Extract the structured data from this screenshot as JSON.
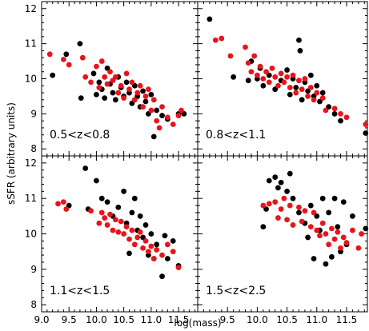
{
  "chart_data": {
    "type": "scatter",
    "xlabel": "log(mass)",
    "ylabel": "sSFR (arbitrary units)",
    "xlim": [
      9.0,
      11.85
    ],
    "ylim": [
      7.8,
      12.2
    ],
    "x_ticks": [
      "9.0",
      "9.5",
      "10.0",
      "10.5",
      "11.0",
      "11.5"
    ],
    "y_ticks": [
      "8",
      "9",
      "10",
      "11",
      "12"
    ],
    "grid": false,
    "series_colors": {
      "black": "#000000",
      "red": "#e8141b"
    },
    "panels": [
      {
        "label": "0.5<z<0.8",
        "black": [
          [
            9.2,
            10.1
          ],
          [
            9.45,
            10.7
          ],
          [
            9.7,
            11.0
          ],
          [
            9.72,
            9.45
          ],
          [
            9.95,
            10.15
          ],
          [
            10.0,
            9.55
          ],
          [
            10.05,
            9.9
          ],
          [
            10.1,
            9.7
          ],
          [
            10.15,
            9.45
          ],
          [
            10.2,
            10.3
          ],
          [
            10.25,
            9.85
          ],
          [
            10.3,
            9.6
          ],
          [
            10.35,
            9.4
          ],
          [
            10.4,
            10.05
          ],
          [
            10.45,
            9.75
          ],
          [
            10.5,
            9.5
          ],
          [
            10.55,
            9.9
          ],
          [
            10.6,
            9.6
          ],
          [
            10.65,
            9.3
          ],
          [
            10.7,
            9.8
          ],
          [
            10.75,
            9.5
          ],
          [
            10.8,
            9.2
          ],
          [
            10.85,
            9.65
          ],
          [
            10.9,
            9.35
          ],
          [
            10.95,
            9.0
          ],
          [
            11.0,
            9.55
          ],
          [
            11.05,
            8.35
          ],
          [
            11.1,
            9.1
          ],
          [
            11.2,
            8.95
          ],
          [
            11.3,
            8.85
          ],
          [
            11.5,
            9.0
          ],
          [
            11.6,
            9.0
          ]
        ],
        "red": [
          [
            9.15,
            10.7
          ],
          [
            9.4,
            10.55
          ],
          [
            9.5,
            10.4
          ],
          [
            9.75,
            10.6
          ],
          [
            9.8,
            10.05
          ],
          [
            9.9,
            9.9
          ],
          [
            10.0,
            10.35
          ],
          [
            10.05,
            9.75
          ],
          [
            10.1,
            10.5
          ],
          [
            10.15,
            10.05
          ],
          [
            10.2,
            9.85
          ],
          [
            10.25,
            10.2
          ],
          [
            10.3,
            9.95
          ],
          [
            10.35,
            10.05
          ],
          [
            10.4,
            9.6
          ],
          [
            10.45,
            9.8
          ],
          [
            10.5,
            9.45
          ],
          [
            10.55,
            10.15
          ],
          [
            10.6,
            9.7
          ],
          [
            10.65,
            9.9
          ],
          [
            10.7,
            9.4
          ],
          [
            10.75,
            9.6
          ],
          [
            10.8,
            9.8
          ],
          [
            10.85,
            9.2
          ],
          [
            10.9,
            9.5
          ],
          [
            10.95,
            9.7
          ],
          [
            11.0,
            9.1
          ],
          [
            11.05,
            9.4
          ],
          [
            11.1,
            8.8
          ],
          [
            11.15,
            8.6
          ],
          [
            11.2,
            9.2
          ],
          [
            11.3,
            8.9
          ],
          [
            11.4,
            8.7
          ],
          [
            11.5,
            8.95
          ],
          [
            11.55,
            9.1
          ]
        ]
      },
      {
        "label": "0.8<z<1.1",
        "black": [
          [
            9.2,
            11.7
          ],
          [
            9.6,
            10.05
          ],
          [
            9.85,
            9.95
          ],
          [
            9.9,
            10.5
          ],
          [
            10.0,
            10.0
          ],
          [
            10.05,
            10.3
          ],
          [
            10.1,
            9.8
          ],
          [
            10.2,
            10.1
          ],
          [
            10.3,
            9.7
          ],
          [
            10.4,
            9.95
          ],
          [
            10.5,
            10.25
          ],
          [
            10.55,
            9.55
          ],
          [
            10.6,
            10.0
          ],
          [
            10.65,
            9.75
          ],
          [
            10.7,
            11.1
          ],
          [
            10.72,
            10.8
          ],
          [
            10.75,
            9.4
          ],
          [
            10.8,
            9.9
          ],
          [
            10.85,
            9.65
          ],
          [
            10.9,
            10.1
          ],
          [
            10.95,
            9.5
          ],
          [
            11.0,
            9.8
          ],
          [
            11.05,
            9.35
          ],
          [
            11.1,
            9.6
          ],
          [
            11.2,
            9.2
          ],
          [
            11.3,
            9.0
          ],
          [
            11.4,
            8.8
          ],
          [
            11.82,
            8.45
          ]
        ],
        "red": [
          [
            9.3,
            11.1
          ],
          [
            9.4,
            11.15
          ],
          [
            9.55,
            10.65
          ],
          [
            9.8,
            10.9
          ],
          [
            9.85,
            10.45
          ],
          [
            9.9,
            10.2
          ],
          [
            9.95,
            10.65
          ],
          [
            10.0,
            10.1
          ],
          [
            10.05,
            10.35
          ],
          [
            10.1,
            10.0
          ],
          [
            10.15,
            10.2
          ],
          [
            10.2,
            9.9
          ],
          [
            10.25,
            10.3
          ],
          [
            10.3,
            10.05
          ],
          [
            10.35,
            9.8
          ],
          [
            10.4,
            10.15
          ],
          [
            10.45,
            9.9
          ],
          [
            10.5,
            10.05
          ],
          [
            10.55,
            9.75
          ],
          [
            10.6,
            10.1
          ],
          [
            10.65,
            9.6
          ],
          [
            10.7,
            9.95
          ],
          [
            10.75,
            9.7
          ],
          [
            10.8,
            10.0
          ],
          [
            10.85,
            9.5
          ],
          [
            10.9,
            9.75
          ],
          [
            10.95,
            9.4
          ],
          [
            11.0,
            9.6
          ],
          [
            11.1,
            9.45
          ],
          [
            11.15,
            9.1
          ],
          [
            11.3,
            9.15
          ],
          [
            11.4,
            9.0
          ],
          [
            11.5,
            8.9
          ],
          [
            11.82,
            8.7
          ]
        ]
      },
      {
        "label": "1.1<z<1.5",
        "black": [
          [
            9.5,
            10.8
          ],
          [
            9.8,
            11.85
          ],
          [
            9.85,
            10.7
          ],
          [
            10.0,
            11.5
          ],
          [
            10.1,
            11.0
          ],
          [
            10.2,
            10.9
          ],
          [
            10.3,
            10.5
          ],
          [
            10.4,
            10.75
          ],
          [
            10.5,
            11.2
          ],
          [
            10.55,
            10.3
          ],
          [
            10.6,
            9.45
          ],
          [
            10.65,
            10.6
          ],
          [
            10.7,
            11.0
          ],
          [
            10.75,
            10.1
          ],
          [
            10.8,
            10.5
          ],
          [
            10.85,
            9.9
          ],
          [
            10.9,
            10.25
          ],
          [
            10.95,
            9.4
          ],
          [
            11.0,
            10.0
          ],
          [
            11.05,
            9.3
          ],
          [
            11.1,
            9.7
          ],
          [
            11.2,
            8.8
          ],
          [
            11.25,
            9.95
          ],
          [
            11.3,
            9.3
          ],
          [
            11.4,
            9.8
          ],
          [
            11.5,
            9.1
          ]
        ],
        "red": [
          [
            9.3,
            10.85
          ],
          [
            9.4,
            10.9
          ],
          [
            9.45,
            10.7
          ],
          [
            9.9,
            10.65
          ],
          [
            10.05,
            10.3
          ],
          [
            10.1,
            10.6
          ],
          [
            10.15,
            10.45
          ],
          [
            10.2,
            10.25
          ],
          [
            10.25,
            10.55
          ],
          [
            10.3,
            10.1
          ],
          [
            10.35,
            10.4
          ],
          [
            10.4,
            10.05
          ],
          [
            10.45,
            10.35
          ],
          [
            10.5,
            10.0
          ],
          [
            10.55,
            10.2
          ],
          [
            10.6,
            9.85
          ],
          [
            10.65,
            10.1
          ],
          [
            10.7,
            9.7
          ],
          [
            10.75,
            9.9
          ],
          [
            10.8,
            10.05
          ],
          [
            10.85,
            9.6
          ],
          [
            10.9,
            9.8
          ],
          [
            10.95,
            9.5
          ],
          [
            11.0,
            9.65
          ],
          [
            11.05,
            9.3
          ],
          [
            11.1,
            9.55
          ],
          [
            11.2,
            9.4
          ],
          [
            11.3,
            9.7
          ],
          [
            11.4,
            9.5
          ],
          [
            11.5,
            9.05
          ]
        ]
      },
      {
        "label": "1.5<z<2.5",
        "black": [
          [
            10.1,
            10.2
          ],
          [
            10.15,
            10.7
          ],
          [
            10.2,
            11.5
          ],
          [
            10.3,
            11.6
          ],
          [
            10.35,
            11.3
          ],
          [
            10.4,
            11.45
          ],
          [
            10.5,
            11.2
          ],
          [
            10.55,
            11.7
          ],
          [
            10.6,
            11.0
          ],
          [
            10.7,
            10.6
          ],
          [
            10.8,
            10.3
          ],
          [
            10.85,
            9.9
          ],
          [
            10.9,
            10.8
          ],
          [
            10.95,
            9.3
          ],
          [
            11.0,
            10.5
          ],
          [
            11.05,
            10.1
          ],
          [
            11.1,
            11.0
          ],
          [
            11.15,
            9.15
          ],
          [
            11.2,
            10.6
          ],
          [
            11.25,
            9.35
          ],
          [
            11.3,
            11.0
          ],
          [
            11.35,
            10.2
          ],
          [
            11.4,
            9.5
          ],
          [
            11.45,
            10.9
          ],
          [
            11.5,
            9.7
          ],
          [
            11.6,
            10.5
          ],
          [
            11.82,
            10.15
          ]
        ],
        "red": [
          [
            10.1,
            10.8
          ],
          [
            10.2,
            10.85
          ],
          [
            10.3,
            10.9
          ],
          [
            10.35,
            10.45
          ],
          [
            10.4,
            10.7
          ],
          [
            10.45,
            11.0
          ],
          [
            10.5,
            10.4
          ],
          [
            10.55,
            10.8
          ],
          [
            10.6,
            10.25
          ],
          [
            10.7,
            10.75
          ],
          [
            10.75,
            10.35
          ],
          [
            10.8,
            10.65
          ],
          [
            10.9,
            10.2
          ],
          [
            10.95,
            10.6
          ],
          [
            11.0,
            10.1
          ],
          [
            11.05,
            9.95
          ],
          [
            11.1,
            10.3
          ],
          [
            11.15,
            10.0
          ],
          [
            11.2,
            9.7
          ],
          [
            11.25,
            10.15
          ],
          [
            11.3,
            9.85
          ],
          [
            11.35,
            10.05
          ],
          [
            11.4,
            9.6
          ],
          [
            11.45,
            9.9
          ],
          [
            11.5,
            9.75
          ],
          [
            11.6,
            10.1
          ],
          [
            11.7,
            9.6
          ],
          [
            11.75,
            10.0
          ]
        ]
      }
    ]
  }
}
